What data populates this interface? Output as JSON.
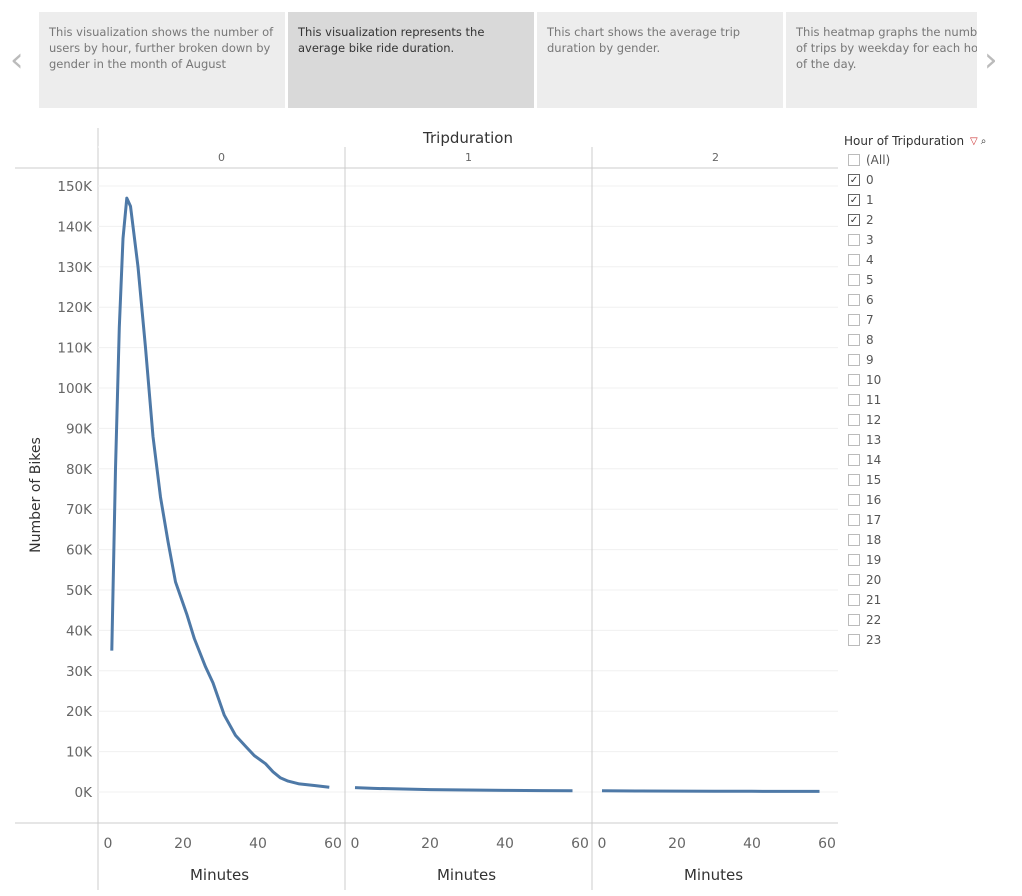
{
  "story": {
    "cards": [
      {
        "text": "This visualization shows the number of users by hour, further broken down by gender in the month of August",
        "active": false
      },
      {
        "text": "This visualization represents the average bike ride duration.",
        "active": true
      },
      {
        "text": "This chart shows the average trip duration by gender.",
        "active": false
      },
      {
        "text": "This heatmap graphs the number of trips by weekday for each hour of the day.",
        "active": false
      }
    ],
    "prev_icon": "chevron-left-icon",
    "next_icon": "chevron-right-icon"
  },
  "filter": {
    "title": "Hour of Tripduration",
    "clear_icon": "filter-clear-icon",
    "search_icon": "search-icon",
    "items": [
      {
        "label": "(All)",
        "checked": false
      },
      {
        "label": "0",
        "checked": true
      },
      {
        "label": "1",
        "checked": true
      },
      {
        "label": "2",
        "checked": true
      },
      {
        "label": "3",
        "checked": false
      },
      {
        "label": "4",
        "checked": false
      },
      {
        "label": "5",
        "checked": false
      },
      {
        "label": "6",
        "checked": false
      },
      {
        "label": "7",
        "checked": false
      },
      {
        "label": "8",
        "checked": false
      },
      {
        "label": "9",
        "checked": false
      },
      {
        "label": "10",
        "checked": false
      },
      {
        "label": "11",
        "checked": false
      },
      {
        "label": "12",
        "checked": false
      },
      {
        "label": "13",
        "checked": false
      },
      {
        "label": "14",
        "checked": false
      },
      {
        "label": "15",
        "checked": false
      },
      {
        "label": "16",
        "checked": false
      },
      {
        "label": "17",
        "checked": false
      },
      {
        "label": "18",
        "checked": false
      },
      {
        "label": "19",
        "checked": false
      },
      {
        "label": "20",
        "checked": false
      },
      {
        "label": "21",
        "checked": false
      },
      {
        "label": "22",
        "checked": false
      },
      {
        "label": "23",
        "checked": false
      }
    ]
  },
  "chart_data": {
    "type": "line",
    "title": "Tripduration",
    "xlabel": "Minutes",
    "ylabel": "Number of Bikes",
    "xlim": [
      0,
      60
    ],
    "ylim": [
      0,
      150000
    ],
    "xticks": [
      "0",
      "20",
      "40",
      "60"
    ],
    "yticks": [
      "0K",
      "10K",
      "20K",
      "30K",
      "40K",
      "50K",
      "60K",
      "70K",
      "80K",
      "90K",
      "100K",
      "110K",
      "120K",
      "130K",
      "140K",
      "150K"
    ],
    "grid": true,
    "color": "#4e79a7",
    "panels": [
      {
        "label": "0",
        "x": [
          1,
          2,
          3,
          4,
          5,
          6,
          8,
          10,
          12,
          14,
          16,
          18,
          21,
          23,
          26,
          28,
          31,
          34,
          37,
          39,
          42,
          44,
          46,
          48,
          51,
          55,
          59
        ],
        "y": [
          35000,
          80000,
          115000,
          137000,
          147000,
          145000,
          130000,
          110000,
          88000,
          73000,
          62000,
          52000,
          44000,
          38000,
          31000,
          27000,
          19000,
          14000,
          11000,
          9000,
          7000,
          5000,
          3500,
          2700,
          2000,
          1600,
          1200
        ]
      },
      {
        "label": "1",
        "x": [
          0,
          5,
          10,
          20,
          30,
          40,
          50,
          58
        ],
        "y": [
          1100,
          900,
          800,
          600,
          500,
          400,
          350,
          300
        ]
      },
      {
        "label": "2",
        "x": [
          0,
          10,
          20,
          30,
          40,
          50,
          58
        ],
        "y": [
          300,
          250,
          220,
          200,
          180,
          160,
          150
        ]
      }
    ]
  }
}
